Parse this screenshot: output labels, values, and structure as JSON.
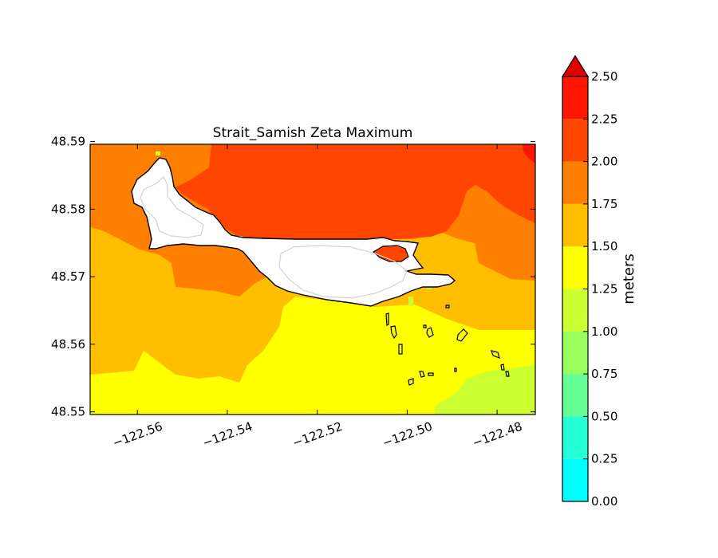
{
  "title": "Strait_Samish Zeta Maximum",
  "map": {
    "x_ticks": [
      "−122.56",
      "−122.54",
      "−122.52",
      "−122.50",
      "−122.48"
    ],
    "y_ticks": [
      "48.59",
      "48.58",
      "48.57",
      "48.56",
      "48.55"
    ],
    "x_range": [
      -122.5705,
      -122.4715
    ],
    "y_range": [
      48.5496,
      48.5896
    ]
  },
  "colorbar": {
    "label": "meters",
    "ticks": [
      "0.00",
      "0.25",
      "0.50",
      "0.75",
      "1.00",
      "1.25",
      "1.50",
      "1.75",
      "2.00",
      "2.25",
      "2.50"
    ],
    "levels": [
      0.0,
      0.25,
      0.5,
      0.75,
      1.0,
      1.25,
      1.5,
      1.75,
      2.0,
      2.25,
      2.5
    ],
    "colors": [
      "#00ffff",
      "#24ffd8",
      "#63ff95",
      "#9aff5d",
      "#ccff2f",
      "#ffff00",
      "#ffbf00",
      "#ff8000",
      "#ff4500",
      "#ff1500",
      "#e00000"
    ],
    "extend": "max"
  },
  "colors": {
    "land": "#ffffff",
    "coastline": "#000000",
    "inner_contour": "#d3d3d3"
  }
}
